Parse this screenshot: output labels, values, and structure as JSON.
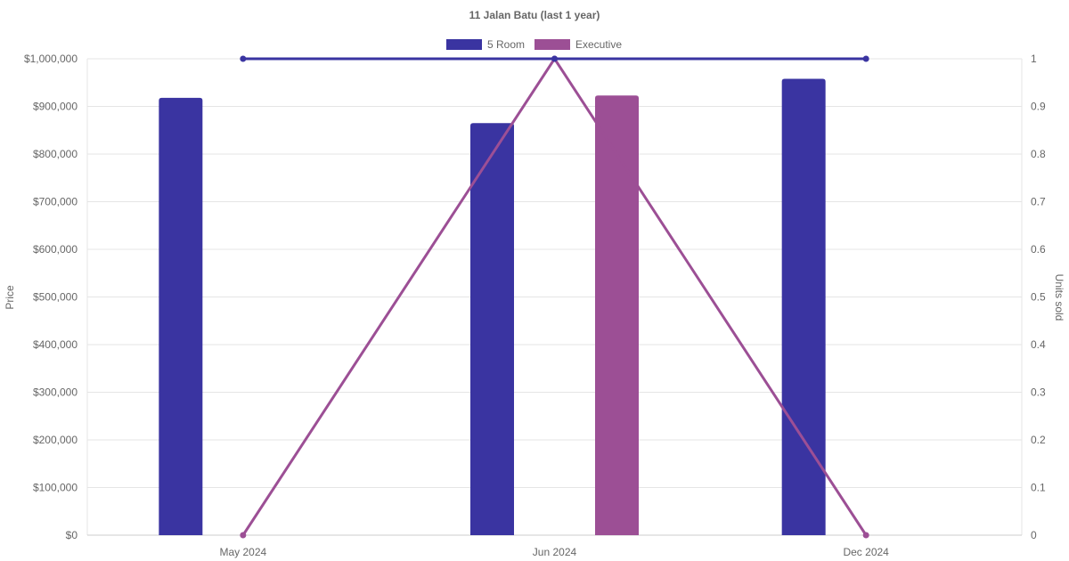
{
  "chart_data": {
    "type": "bar",
    "title": "11 Jalan Batu (last 1 year)",
    "categories": [
      "May 2024",
      "Jun 2024",
      "Dec 2024"
    ],
    "y_left": {
      "label": "Price",
      "range": [
        0,
        1000000
      ],
      "ticks": [
        "$0",
        "$100,000",
        "$200,000",
        "$300,000",
        "$400,000",
        "$500,000",
        "$600,000",
        "$700,000",
        "$800,000",
        "$900,000",
        "$1,000,000"
      ]
    },
    "y_right": {
      "label": "Units sold",
      "range": [
        0,
        1
      ],
      "ticks": [
        "0",
        "0.1",
        "0.2",
        "0.3",
        "0.4",
        "0.5",
        "0.6",
        "0.7",
        "0.8",
        "0.9",
        "1"
      ]
    },
    "grid": true,
    "legend_position": "top-center",
    "series": [
      {
        "name": "5 Room",
        "color": "#3a34a1",
        "bar_values": [
          918000,
          865000,
          958000
        ],
        "units_sold": [
          1,
          1,
          1
        ]
      },
      {
        "name": "Executive",
        "color": "#9c4f95",
        "bar_values": [
          null,
          923000,
          null
        ],
        "units_sold": [
          0,
          1,
          0
        ]
      }
    ]
  }
}
